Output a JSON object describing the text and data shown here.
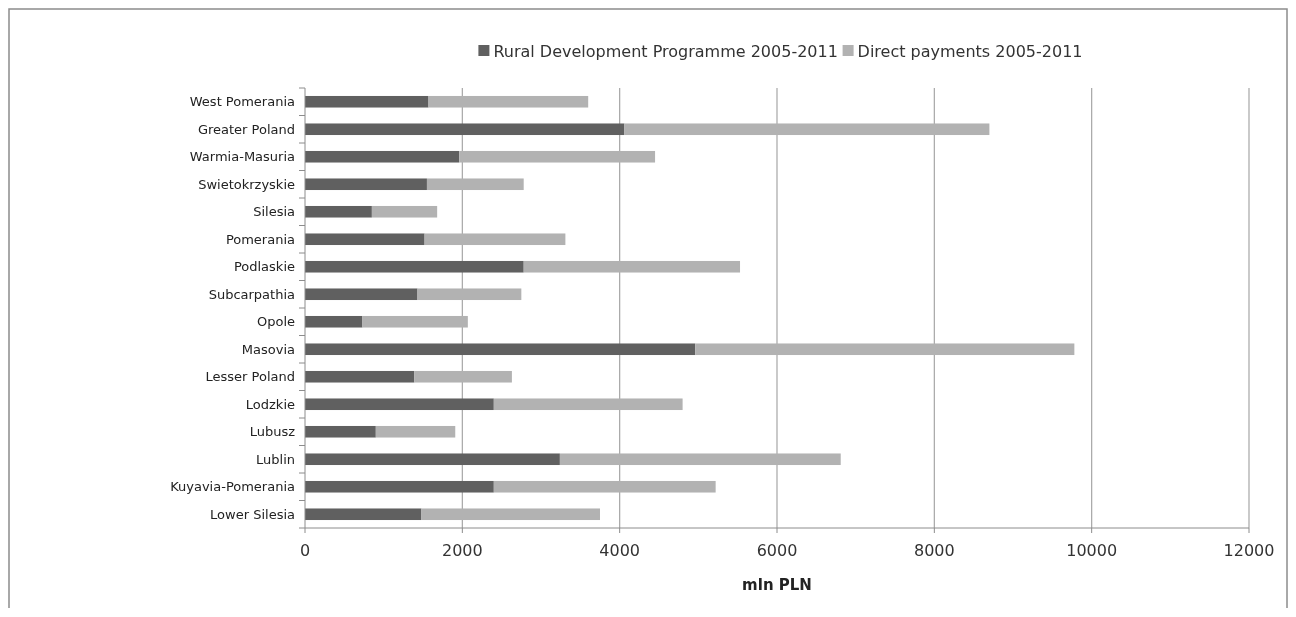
{
  "chart_data": {
    "type": "bar",
    "orientation": "horizontal",
    "stacked": true,
    "xlabel": "mln PLN",
    "categories": [
      "West Pomerania",
      "Greater Poland",
      "Warmia-Masuria",
      "Swietokrzyskie",
      "Silesia",
      "Pomerania",
      "Podlaskie",
      "Subcarpathia",
      "Opole",
      "Masovia",
      "Lesser Poland",
      "Lodzkie",
      "Lubusz",
      "Lublin",
      "Kuyavia-Pomerania",
      "Lower Silesia"
    ],
    "series": [
      {
        "name": "Rural Development Programme 2005-2011",
        "color": "#606060",
        "values": [
          1570,
          4060,
          1960,
          1550,
          850,
          1520,
          2780,
          1430,
          730,
          4960,
          1390,
          2400,
          900,
          3240,
          2400,
          1480
        ]
      },
      {
        "name": "Direct payments 2005-2011",
        "color": "#b2b2b2",
        "values": [
          2030,
          4640,
          2490,
          1230,
          830,
          1790,
          2750,
          1320,
          1340,
          4820,
          1240,
          2400,
          1010,
          3570,
          2820,
          2270
        ]
      }
    ],
    "xlim": [
      0,
      12000
    ],
    "xticks": [
      0,
      2000,
      4000,
      6000,
      8000,
      10000,
      12000
    ],
    "grid": "x",
    "legend": "top"
  }
}
